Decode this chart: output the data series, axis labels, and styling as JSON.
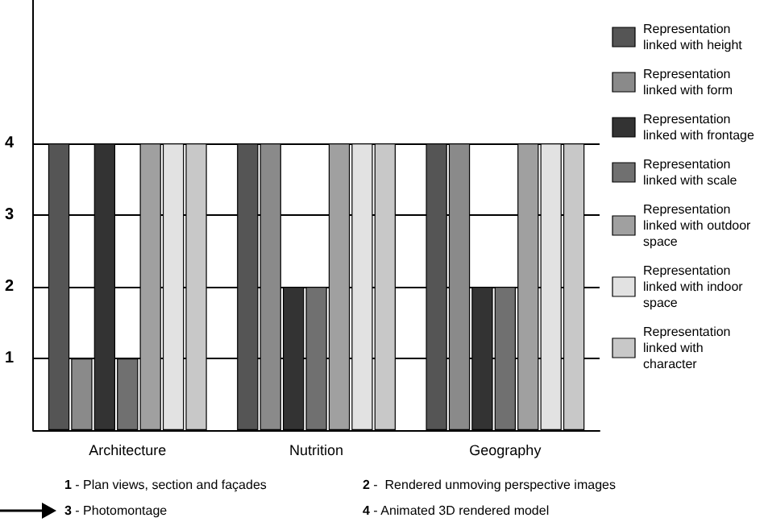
{
  "chart_data": {
    "type": "bar",
    "categories": [
      "Architecture",
      "Nutrition",
      "Geography"
    ],
    "series": [
      {
        "name": "Representation linked with height",
        "color": "#555555",
        "values": [
          4,
          4,
          4
        ]
      },
      {
        "name": "Representation linked with form",
        "color": "#8a8a8a",
        "values": [
          1,
          4,
          4
        ]
      },
      {
        "name": "Representation linked with frontage",
        "color": "#333333",
        "values": [
          4,
          2,
          2
        ]
      },
      {
        "name": "Representation linked with scale",
        "color": "#707070",
        "values": [
          1,
          2,
          2
        ]
      },
      {
        "name": "Representation linked with outdoor space",
        "color": "#a0a0a0",
        "values": [
          4,
          4,
          4
        ]
      },
      {
        "name": "Representation linked with indoor space",
        "color": "#e2e2e2",
        "values": [
          4,
          4,
          4
        ]
      },
      {
        "name": "Representation linked with character",
        "color": "#c8c8c8",
        "values": [
          4,
          4,
          4
        ]
      }
    ],
    "ylim": [
      0,
      6
    ],
    "yticks": [
      1,
      2,
      3,
      4
    ],
    "grid": "y",
    "legend": "right",
    "annotations": [
      "1 - Plan views, section and façades",
      "2 -  Rendered unmoving perspective images",
      "3 - Photomontage",
      "4 - Animated 3D rendered model"
    ]
  }
}
